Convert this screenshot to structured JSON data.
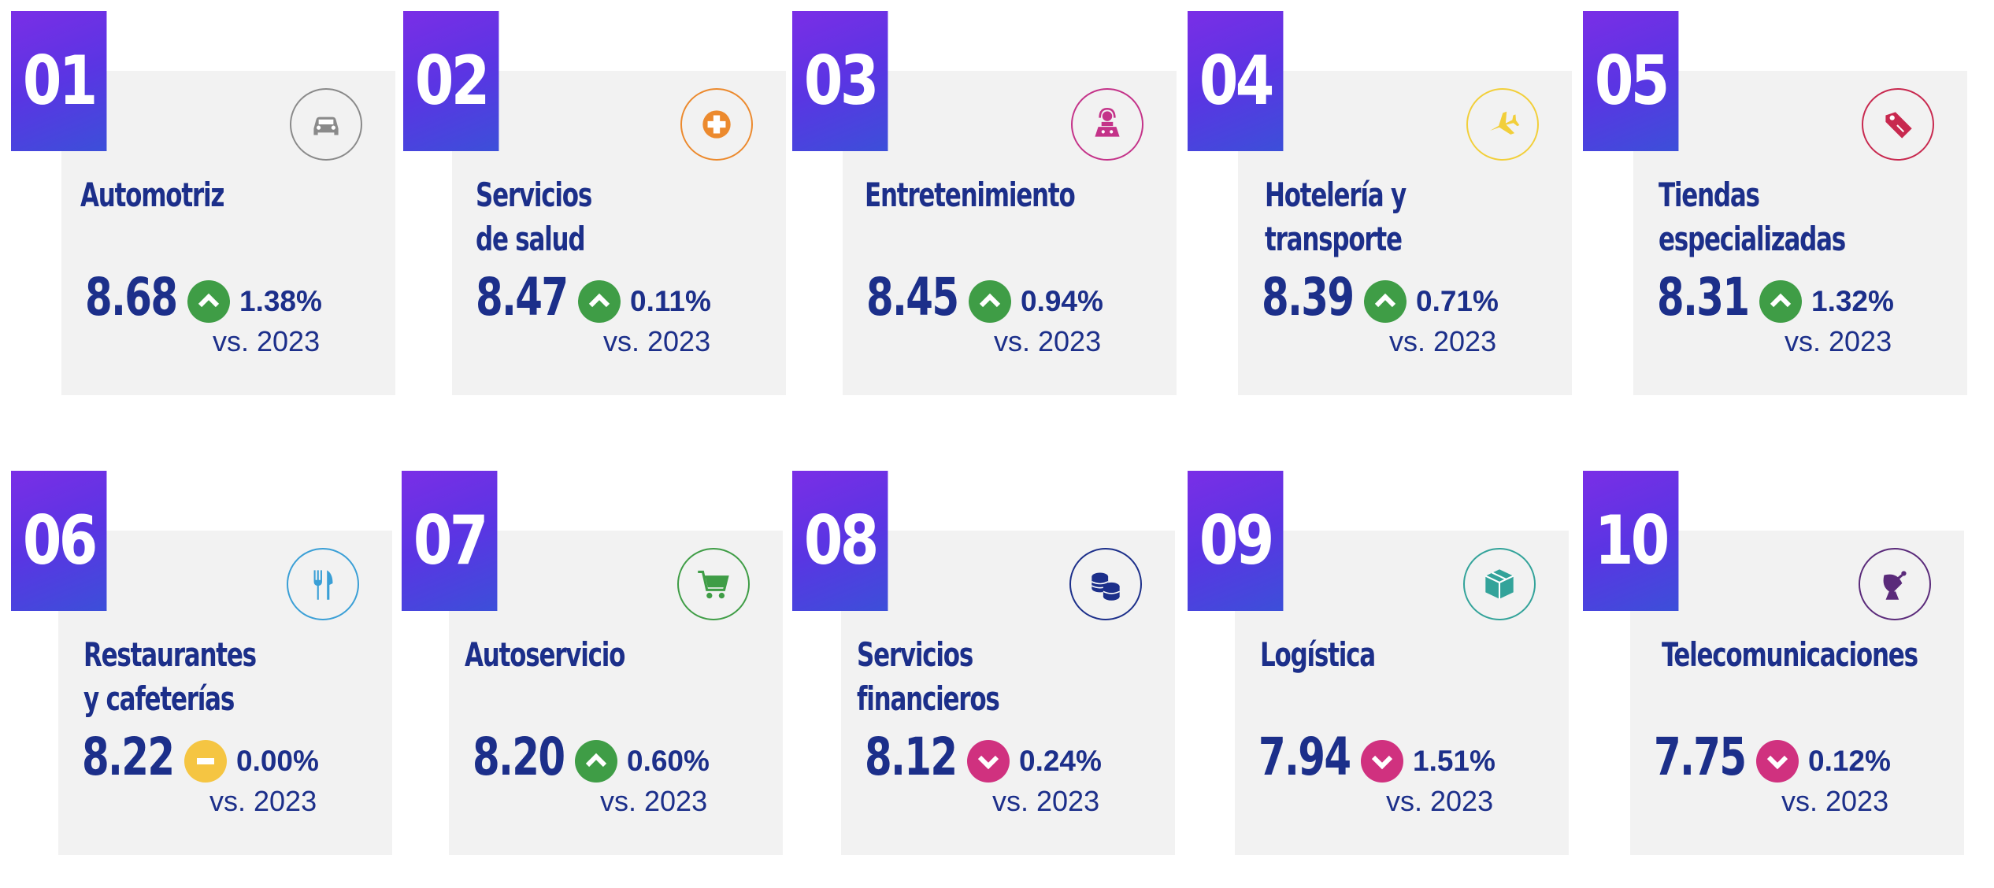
{
  "comparison_label": "vs. 2023",
  "colors": {
    "up": "#3f9d46",
    "flat": "#f5c542",
    "down": "#d0317f",
    "title": "#1c2f8a"
  },
  "categories": [
    {
      "rank": "01",
      "name": [
        "Automotriz"
      ],
      "score": "8.68",
      "trend": "up",
      "change": "1.38%",
      "icon": "car-icon",
      "icon_color": "#8a8a8a"
    },
    {
      "rank": "02",
      "name": [
        "Servicios",
        "de salud"
      ],
      "score": "8.47",
      "trend": "up",
      "change": "0.11%",
      "icon": "medical-cross-icon",
      "icon_color": "#ec8a2e"
    },
    {
      "rank": "03",
      "name": [
        "Entretenimiento"
      ],
      "score": "8.45",
      "trend": "up",
      "change": "0.94%",
      "icon": "entertainment-icon",
      "icon_color": "#c43389"
    },
    {
      "rank": "04",
      "name": [
        "Hotelería y",
        "transporte"
      ],
      "score": "8.39",
      "trend": "up",
      "change": "0.71%",
      "icon": "airplane-icon",
      "icon_color": "#f2cf3a"
    },
    {
      "rank": "05",
      "name": [
        "Tiendas",
        "especializadas"
      ],
      "score": "8.31",
      "trend": "up",
      "change": "1.32%",
      "icon": "price-tag-icon",
      "icon_color": "#c8294f"
    },
    {
      "rank": "06",
      "name": [
        "Restaurantes",
        "y cafeterías"
      ],
      "score": "8.22",
      "trend": "flat",
      "change": "0.00%",
      "icon": "fork-knife-icon",
      "icon_color": "#3a9fd6"
    },
    {
      "rank": "07",
      "name": [
        "Autoservicio"
      ],
      "score": "8.20",
      "trend": "up",
      "change": "0.60%",
      "icon": "shopping-cart-icon",
      "icon_color": "#3f9d46"
    },
    {
      "rank": "08",
      "name": [
        "Servicios",
        "financieros"
      ],
      "score": "8.12",
      "trend": "down",
      "change": "0.24%",
      "icon": "coins-icon",
      "icon_color": "#1c2f8a"
    },
    {
      "rank": "09",
      "name": [
        "Logística"
      ],
      "score": "7.94",
      "trend": "down",
      "change": "1.51%",
      "icon": "package-icon",
      "icon_color": "#33a39a"
    },
    {
      "rank": "10",
      "name": [
        "Telecomunicaciones"
      ],
      "score": "7.75",
      "trend": "down",
      "change": "0.12%",
      "icon": "satellite-dish-icon",
      "icon_color": "#5a2a7a"
    }
  ]
}
